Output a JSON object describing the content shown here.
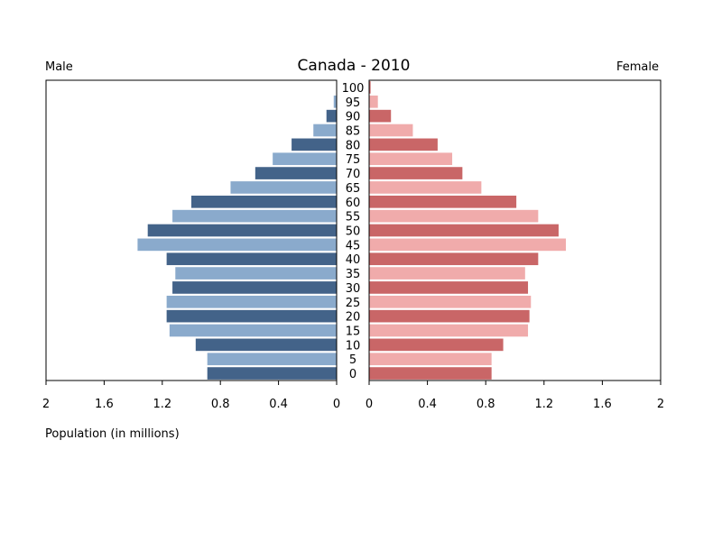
{
  "chart_data": {
    "type": "bar",
    "title": "Canada - 2010",
    "left_label": "Male",
    "right_label": "Female",
    "xlabel": "Population (in millions)",
    "xlim": [
      0,
      2
    ],
    "ticks": [
      0,
      0.4,
      0.8,
      1.2,
      1.6,
      2
    ],
    "tick_labels": [
      "0",
      "0.4",
      "0.8",
      "1.2",
      "1.6",
      "2"
    ],
    "age_labels": [
      "0",
      "5",
      "10",
      "15",
      "20",
      "25",
      "30",
      "35",
      "40",
      "45",
      "50",
      "55",
      "60",
      "65",
      "70",
      "75",
      "80",
      "85",
      "90",
      "95",
      "100"
    ],
    "series": [
      {
        "name": "Male",
        "values": [
          0.89,
          0.89,
          0.97,
          1.15,
          1.17,
          1.17,
          1.13,
          1.11,
          1.17,
          1.37,
          1.3,
          1.13,
          1.0,
          0.73,
          0.56,
          0.44,
          0.31,
          0.16,
          0.07,
          0.02,
          0.003
        ]
      },
      {
        "name": "Female",
        "values": [
          0.84,
          0.84,
          0.92,
          1.09,
          1.1,
          1.11,
          1.09,
          1.07,
          1.16,
          1.35,
          1.3,
          1.16,
          1.01,
          0.77,
          0.64,
          0.57,
          0.47,
          0.3,
          0.15,
          0.06,
          0.01
        ]
      }
    ],
    "colors": {
      "male_dark": "#436389",
      "male_light": "#8AAACC",
      "female_dark": "#C96667",
      "female_light": "#F0ABAB"
    }
  }
}
